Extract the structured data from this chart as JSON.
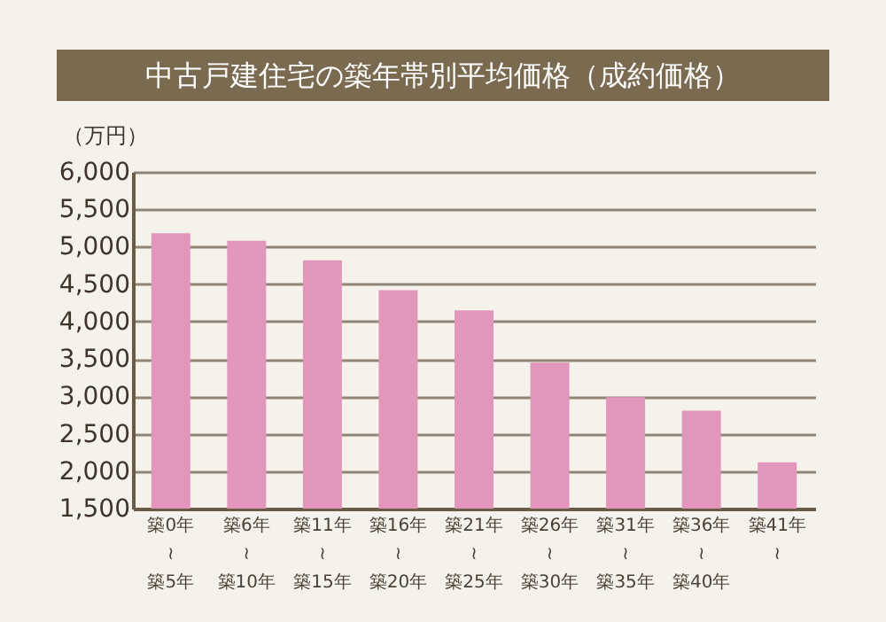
{
  "chart_data": {
    "type": "bar",
    "title": "中古戸建住宅の築年帯別平均価格（成約価格）",
    "ylabel": "（万円）",
    "categories": [
      "築0年\n≀\n築5年",
      "築6年\n≀\n築10年",
      "築11年\n≀\n築15年",
      "築16年\n≀\n築20年",
      "築21年\n≀\n築25年",
      "築26年\n≀\n築30年",
      "築31年\n≀\n築35年",
      "築36年\n≀\n築40年",
      "築41年\n≀"
    ],
    "values": [
      5180,
      5080,
      4820,
      4420,
      4150,
      3450,
      2990,
      2810,
      2120
    ],
    "color": "#e396bb",
    "ylim": [
      1500,
      6000
    ],
    "yticks": [
      {
        "value": 1500,
        "label": "1,500"
      },
      {
        "value": 2000,
        "label": "2,000"
      },
      {
        "value": 2500,
        "label": "2,500"
      },
      {
        "value": 3000,
        "label": "3,000"
      },
      {
        "value": 3500,
        "label": "3,500"
      },
      {
        "value": 4000,
        "label": "4,000"
      },
      {
        "value": 4500,
        "label": "4,500"
      },
      {
        "value": 5000,
        "label": "5,000"
      },
      {
        "value": 5500,
        "label": "5,500"
      },
      {
        "value": 6000,
        "label": "6,000"
      }
    ],
    "grid": "y"
  }
}
